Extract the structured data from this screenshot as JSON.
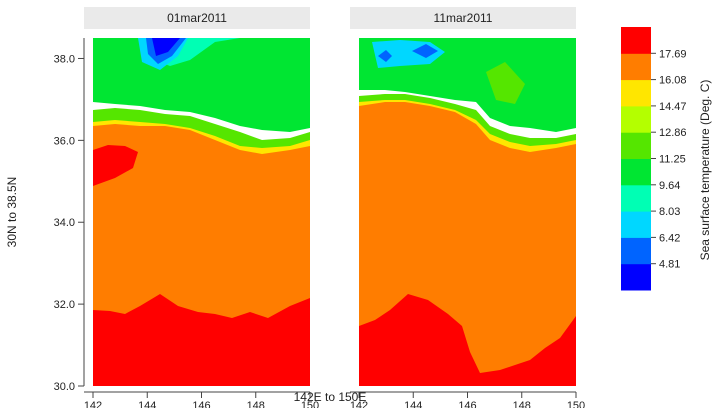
{
  "chart_data": {
    "type": "heatmap",
    "panels": [
      {
        "title": "01mar2011"
      },
      {
        "title": "11mar2011"
      }
    ],
    "xlabel": "142E to 150E",
    "ylabel": "30N to 38.5N",
    "xlim": [
      142,
      150
    ],
    "ylim": [
      30,
      38.5
    ],
    "x_ticks": [
      "142",
      "144",
      "146",
      "148",
      "150"
    ],
    "y_ticks": [
      "30.0",
      "32.0",
      "34.0",
      "36.0",
      "38.0"
    ],
    "x_tick_values": [
      142,
      144,
      146,
      148,
      150
    ],
    "y_tick_values": [
      30,
      32,
      34,
      36,
      38
    ],
    "colorbar": {
      "title": "Sea surface temperature (Deg. C)",
      "tick_labels": [
        "4.81",
        "6.42",
        "8.03",
        "9.64",
        "11.25",
        "12.86",
        "14.47",
        "16.08",
        "17.69"
      ],
      "colors": [
        "#0000ff",
        "#0064ff",
        "#00d7ff",
        "#00ffb4",
        "#00e632",
        "#55e600",
        "#b4ff00",
        "#ffe600",
        "#ff7d00",
        "#ff0000"
      ]
    }
  }
}
